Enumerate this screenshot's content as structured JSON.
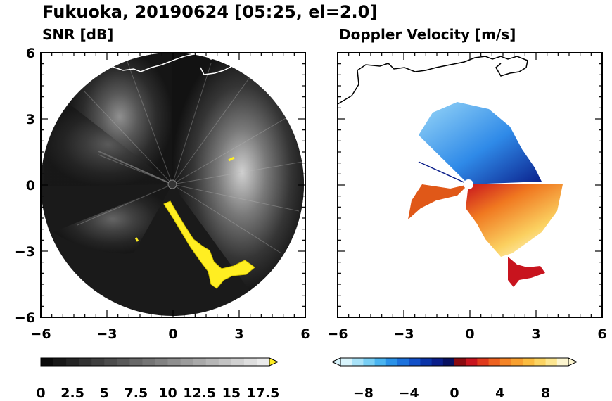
{
  "title": "Fukuoka, 20190624 [05:25, el=2.0]",
  "panels": [
    {
      "subtitle": "SNR [dB]"
    },
    {
      "subtitle": "Doppler Velocity [m/s]"
    }
  ],
  "colors": {
    "snr_fill": "#1a1a1a",
    "snr_bright": "#d8d8d8",
    "highlight": "#ffee22",
    "vel_blue": "#1f6fe0",
    "vel_lightblue": "#66ccf5",
    "vel_darkblue": "#0a1e8a",
    "vel_red": "#c8141e",
    "vel_orange": "#f08020",
    "vel_yellow": "#fbe88a"
  },
  "chart_data": [
    {
      "type": "heatmap",
      "title": "SNR [dB]",
      "xlim": [
        -6,
        6
      ],
      "ylim": [
        -6,
        6
      ],
      "xticks": [
        "−6",
        "−3",
        "0",
        "3",
        "6"
      ],
      "yticks": [
        "6",
        "3",
        "0",
        "−3",
        "−6"
      ],
      "colorbar": {
        "range": [
          0,
          18
        ],
        "extend": "max",
        "tick_labels": [
          "0",
          "2.5",
          "5",
          "7.5",
          "10",
          "12.5",
          "15",
          "17.5"
        ]
      }
    },
    {
      "type": "heatmap",
      "title": "Doppler Velocity [m/s]",
      "xlim": [
        -6,
        6
      ],
      "ylim": [
        -6,
        6
      ],
      "xticks": [
        "−6",
        "−3",
        "0",
        "3",
        "6"
      ],
      "yticks": [
        "6",
        "3",
        "0",
        "−3",
        "−6"
      ],
      "colorbar": {
        "range": [
          -10,
          10
        ],
        "extend": "both",
        "tick_labels": [
          "−8",
          "−4",
          "0",
          "4",
          "8"
        ]
      }
    }
  ]
}
